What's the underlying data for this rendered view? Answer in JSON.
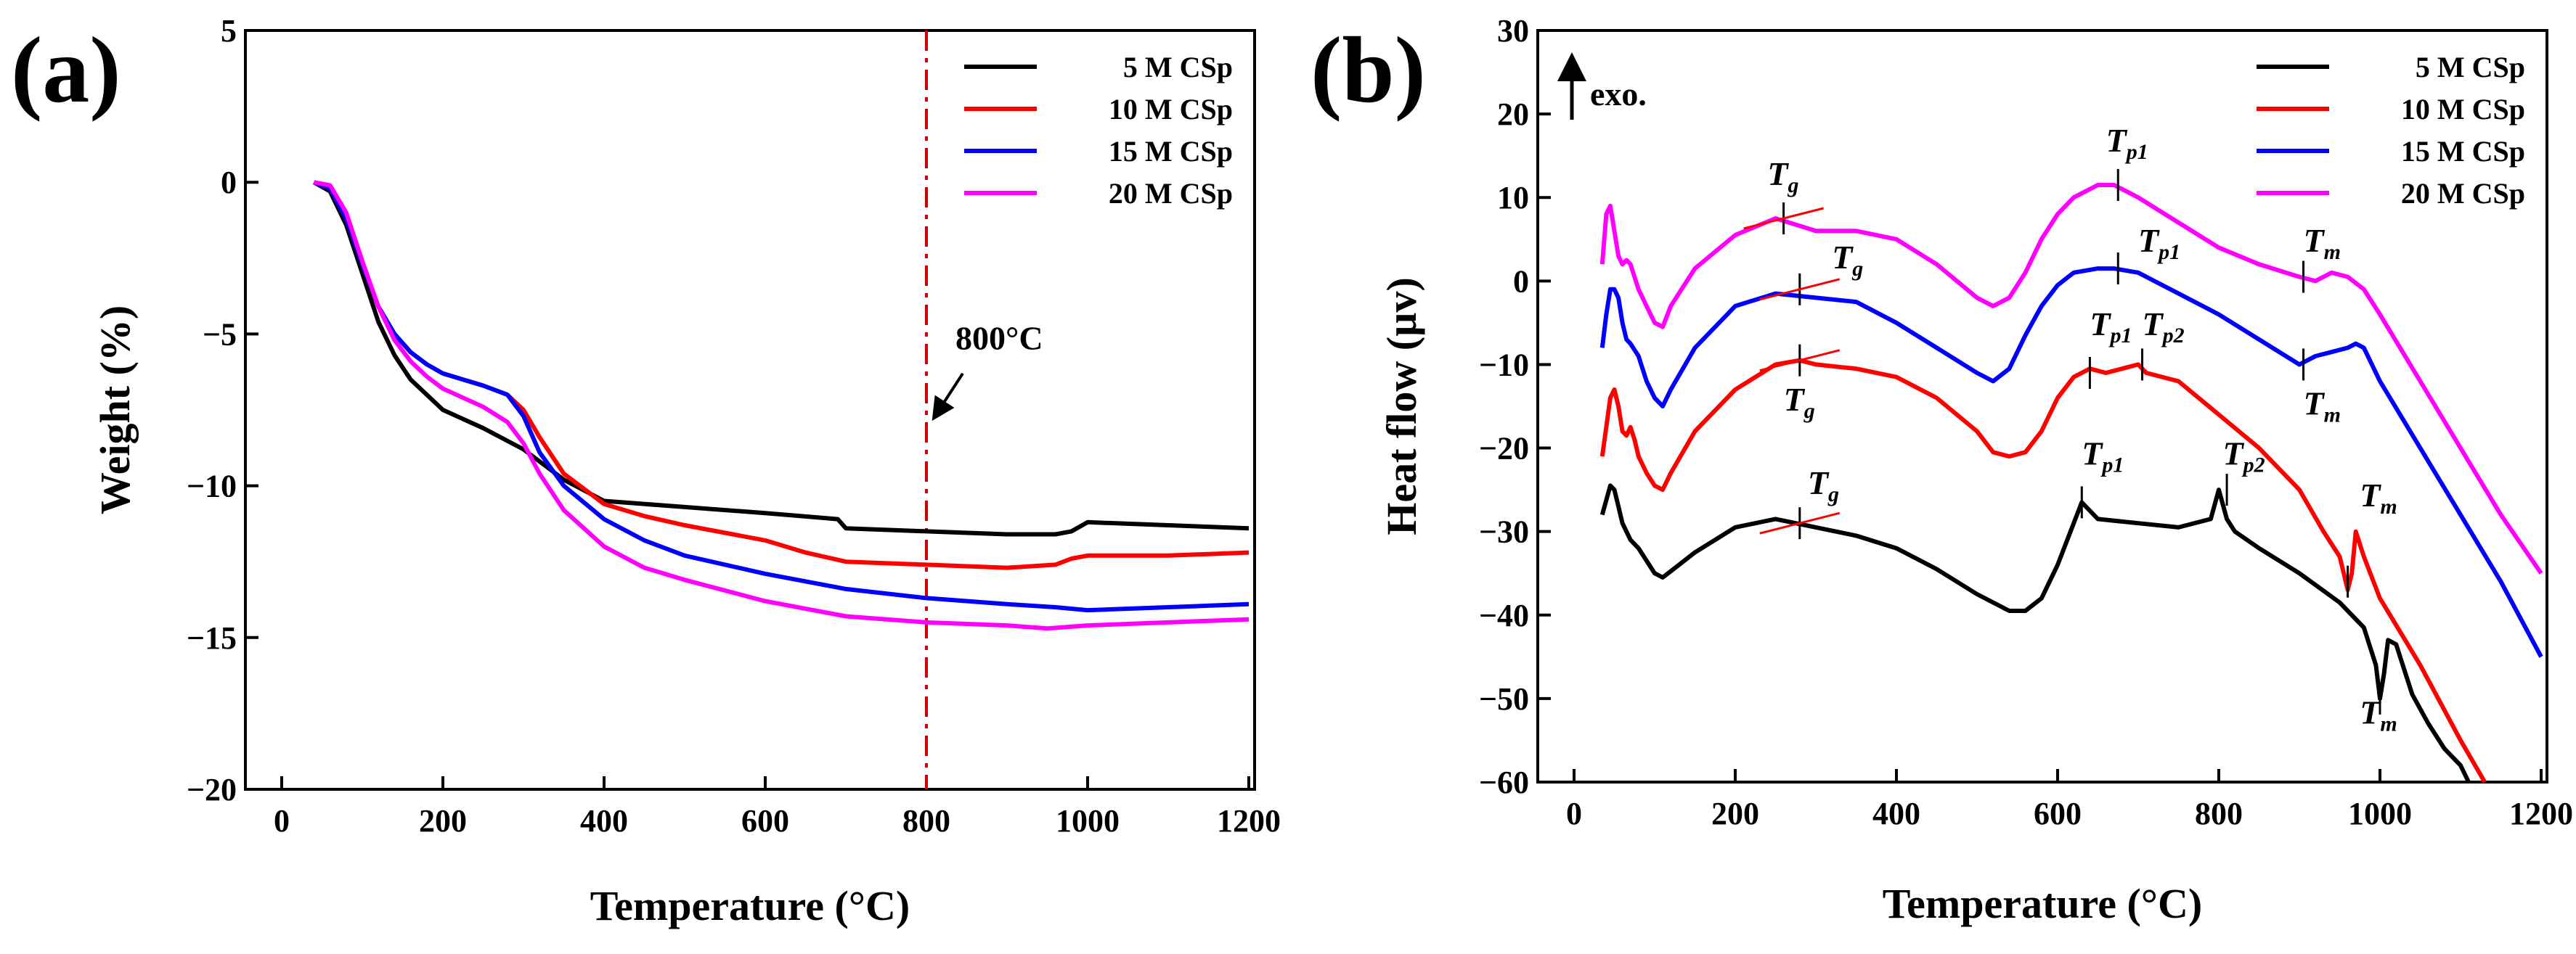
{
  "chart_data": [
    {
      "panel": "(a)",
      "type": "line",
      "xlabel": "Temperature (°C)",
      "ylabel": "Weight (%)",
      "xlim": [
        0,
        1200
      ],
      "ylim": [
        -20,
        5
      ],
      "xticks": [
        0,
        200,
        400,
        600,
        800,
        1000,
        1200
      ],
      "yticks": [
        -20,
        -15,
        -10,
        -5,
        0,
        5
      ],
      "ytick_labels": [
        "−20",
        "−15",
        "−10",
        "−5",
        "0",
        "5"
      ],
      "legend_position": "top-right",
      "series": [
        {
          "name": "5 M CSp",
          "color": "#000000",
          "x": [
            40,
            60,
            80,
            100,
            120,
            140,
            160,
            180,
            200,
            250,
            300,
            350,
            400,
            500,
            600,
            690,
            700,
            800,
            900,
            960,
            980,
            1000,
            1100,
            1200
          ],
          "y": [
            0,
            -0.3,
            -1.4,
            -3.0,
            -4.6,
            -5.7,
            -6.5,
            -7.0,
            -7.5,
            -8.1,
            -8.8,
            -9.8,
            -10.5,
            -10.7,
            -10.9,
            -11.1,
            -11.4,
            -11.5,
            -11.6,
            -11.6,
            -11.5,
            -11.2,
            -11.3,
            -11.4
          ]
        },
        {
          "name": "10 M CSp",
          "color": "#ff0000",
          "x": [
            40,
            60,
            80,
            100,
            120,
            140,
            160,
            180,
            200,
            250,
            280,
            300,
            320,
            350,
            400,
            450,
            500,
            600,
            650,
            700,
            800,
            900,
            960,
            980,
            1000,
            1100,
            1200
          ],
          "y": [
            0,
            -0.2,
            -1.2,
            -2.7,
            -4.1,
            -5.0,
            -5.6,
            -6.0,
            -6.3,
            -6.7,
            -7.0,
            -7.5,
            -8.4,
            -9.6,
            -10.6,
            -11.0,
            -11.3,
            -11.8,
            -12.2,
            -12.5,
            -12.6,
            -12.7,
            -12.6,
            -12.4,
            -12.3,
            -12.3,
            -12.2
          ]
        },
        {
          "name": "15 M CSp",
          "color": "#0000ff",
          "x": [
            40,
            60,
            80,
            100,
            120,
            140,
            160,
            180,
            200,
            250,
            280,
            300,
            320,
            350,
            400,
            450,
            500,
            600,
            700,
            800,
            900,
            960,
            1000,
            1100,
            1200
          ],
          "y": [
            0,
            -0.2,
            -1.2,
            -2.7,
            -4.1,
            -5.0,
            -5.6,
            -6.0,
            -6.3,
            -6.7,
            -7.0,
            -7.7,
            -8.9,
            -10.0,
            -11.1,
            -11.8,
            -12.3,
            -12.9,
            -13.4,
            -13.7,
            -13.9,
            -14.0,
            -14.1,
            -14.0,
            -13.9
          ]
        },
        {
          "name": "20 M CSp",
          "color": "#ff00ff",
          "x": [
            40,
            60,
            80,
            100,
            120,
            140,
            160,
            180,
            200,
            250,
            280,
            300,
            320,
            350,
            400,
            450,
            500,
            600,
            700,
            800,
            900,
            950,
            1000,
            1100,
            1200
          ],
          "y": [
            0,
            -0.1,
            -1.0,
            -2.6,
            -4.1,
            -5.2,
            -5.9,
            -6.4,
            -6.8,
            -7.4,
            -7.9,
            -8.6,
            -9.6,
            -10.8,
            -12.0,
            -12.7,
            -13.1,
            -13.8,
            -14.3,
            -14.5,
            -14.6,
            -14.7,
            -14.6,
            -14.5,
            -14.4
          ]
        }
      ],
      "marker_line": {
        "x": 800,
        "label": "800°C",
        "color": "#cc0000"
      }
    },
    {
      "panel": "(b)",
      "type": "line",
      "xlabel": "Temperature (°C)",
      "ylabel": "Heat flow (µv)",
      "xlim": [
        0,
        1200
      ],
      "ylim": [
        -60,
        30
      ],
      "xticks": [
        0,
        200,
        400,
        600,
        800,
        1000,
        1200
      ],
      "yticks": [
        -60,
        -50,
        -40,
        -30,
        -20,
        -10,
        0,
        10,
        20,
        30
      ],
      "ytick_labels": [
        "−60",
        "−50",
        "−40",
        "−30",
        "−20",
        "−10",
        "0",
        "10",
        "20",
        "30"
      ],
      "legend_position": "top-right",
      "exo_label": "exo.",
      "series": [
        {
          "name": "5 M CSp",
          "color": "#000000",
          "x": [
            35,
            45,
            50,
            55,
            60,
            70,
            80,
            90,
            100,
            110,
            130,
            150,
            200,
            250,
            300,
            350,
            400,
            450,
            500,
            540,
            560,
            580,
            600,
            620,
            630,
            650,
            680,
            700,
            750,
            790,
            800,
            810,
            820,
            850,
            900,
            950,
            980,
            995,
            1000,
            1005,
            1010,
            1020,
            1040,
            1060,
            1080,
            1100,
            1110
          ],
          "y": [
            -28,
            -24.5,
            -25,
            -27,
            -29,
            -31,
            -32,
            -33.5,
            -35,
            -35.5,
            -34,
            -32.5,
            -29.5,
            -28.5,
            -29.5,
            -30.5,
            -32,
            -34.5,
            -37.5,
            -39.5,
            -39.5,
            -38,
            -34,
            -29,
            -26.5,
            -28.5,
            -28.8,
            -29,
            -29.5,
            -28.5,
            -25,
            -28.5,
            -30,
            -32,
            -35,
            -38.5,
            -41.5,
            -46,
            -50,
            -47,
            -43,
            -43.5,
            -49.5,
            -53,
            -56,
            -58,
            -60
          ]
        },
        {
          "name": "10 M CSp",
          "color": "#ff0000",
          "x": [
            35,
            45,
            50,
            55,
            60,
            65,
            70,
            75,
            80,
            90,
            100,
            110,
            120,
            150,
            200,
            250,
            280,
            300,
            350,
            400,
            450,
            500,
            520,
            540,
            560,
            580,
            600,
            620,
            640,
            660,
            680,
            700,
            710,
            750,
            800,
            850,
            900,
            930,
            950,
            955,
            960,
            965,
            970,
            980,
            1000,
            1050,
            1100,
            1130
          ],
          "y": [
            -21,
            -14,
            -13,
            -15,
            -18,
            -18.5,
            -17.5,
            -19,
            -21,
            -23,
            -24.5,
            -25,
            -23,
            -18,
            -13,
            -10,
            -9.5,
            -10,
            -10.5,
            -11.5,
            -14,
            -18,
            -20.5,
            -21,
            -20.5,
            -18,
            -14,
            -11.5,
            -10.5,
            -11,
            -10.5,
            -10,
            -11,
            -12,
            -16,
            -20,
            -25,
            -30,
            -33,
            -35,
            -37,
            -35,
            -30,
            -33,
            -38,
            -46,
            -55,
            -60
          ]
        },
        {
          "name": "15 M CSp",
          "color": "#0000ff",
          "x": [
            35,
            40,
            45,
            50,
            55,
            60,
            65,
            70,
            80,
            90,
            100,
            110,
            120,
            150,
            200,
            250,
            300,
            350,
            400,
            450,
            500,
            520,
            540,
            560,
            580,
            600,
            620,
            650,
            670,
            700,
            750,
            800,
            850,
            900,
            920,
            940,
            960,
            970,
            980,
            1000,
            1050,
            1100,
            1150,
            1200
          ],
          "y": [
            -8,
            -4,
            -1,
            -1,
            -2,
            -5,
            -7,
            -7.5,
            -9,
            -12,
            -14,
            -15,
            -13,
            -8,
            -3,
            -1.5,
            -2,
            -2.5,
            -5,
            -8,
            -11,
            -12,
            -10.5,
            -6.5,
            -3,
            -0.5,
            1,
            1.5,
            1.5,
            1,
            -1.5,
            -4,
            -7,
            -10,
            -9,
            -8.5,
            -8,
            -7.5,
            -8,
            -12,
            -20,
            -28,
            -36,
            -45
          ]
        },
        {
          "name": "20 M CSp",
          "color": "#ff00ff",
          "x": [
            35,
            40,
            45,
            50,
            55,
            60,
            65,
            70,
            80,
            90,
            100,
            110,
            120,
            150,
            200,
            250,
            300,
            350,
            400,
            450,
            500,
            520,
            540,
            560,
            580,
            600,
            620,
            650,
            670,
            700,
            750,
            800,
            850,
            900,
            920,
            940,
            960,
            980,
            1000,
            1050,
            1100,
            1150,
            1200
          ],
          "y": [
            2,
            8,
            9,
            6,
            3,
            2,
            2.5,
            2,
            -1,
            -3,
            -5,
            -5.5,
            -3,
            1.5,
            5.5,
            7.5,
            6,
            6,
            5,
            2,
            -2,
            -3,
            -2,
            1,
            5,
            8,
            10,
            11.5,
            11.5,
            10,
            7,
            4,
            2,
            0.5,
            0,
            1,
            0.5,
            -1,
            -4,
            -12,
            -20,
            -28,
            -35
          ]
        }
      ],
      "annotations": [
        {
          "id": "tg-magenta",
          "main": "T",
          "sub": "g",
          "x": 240,
          "y": 11.5,
          "mark_x": 260,
          "mark_y": 7.5
        },
        {
          "id": "tp1-magenta",
          "main": "T",
          "sub": "p1",
          "x": 660,
          "y": 15.5,
          "mark_x": 675,
          "mark_y": 11.5
        },
        {
          "id": "tm-magenta",
          "main": "T",
          "sub": "m",
          "x": 905,
          "y": 3.5,
          "mark_x": 905,
          "mark_y": 0.5
        },
        {
          "id": "tg-blue",
          "main": "T",
          "sub": "g",
          "x": 320,
          "y": 1.5,
          "mark_x": 280,
          "mark_y": -1
        },
        {
          "id": "tp1-blue",
          "main": "T",
          "sub": "p1",
          "x": 700,
          "y": 3.5,
          "mark_x": 675,
          "mark_y": 1.5
        },
        {
          "id": "tm-blue",
          "main": "T",
          "sub": "m",
          "x": 905,
          "y": -16,
          "mark_x": 905,
          "mark_y": -10
        },
        {
          "id": "tg-red",
          "main": "T",
          "sub": "g",
          "x": 260,
          "y": -15.5,
          "mark_x": 280,
          "mark_y": -9.5
        },
        {
          "id": "tp1-red",
          "main": "T",
          "sub": "p1",
          "x": 640,
          "y": -6.5,
          "mark_x": 640,
          "mark_y": -11
        },
        {
          "id": "tp2-red",
          "main": "T",
          "sub": "p2",
          "x": 705,
          "y": -6.5,
          "mark_x": 705,
          "mark_y": -10
        },
        {
          "id": "tm-red",
          "main": "T",
          "sub": "m",
          "x": 975,
          "y": -27,
          "mark_x": 960,
          "mark_y": -36
        },
        {
          "id": "tg-black",
          "main": "T",
          "sub": "g",
          "x": 290,
          "y": -25.5,
          "mark_x": 280,
          "mark_y": -29
        },
        {
          "id": "tp1-black",
          "main": "T",
          "sub": "p1",
          "x": 630,
          "y": -22,
          "mark_x": 630,
          "mark_y": -26.5
        },
        {
          "id": "tp2-black",
          "main": "T",
          "sub": "p2",
          "x": 805,
          "y": -22,
          "mark_x": 810,
          "mark_y": -25
        },
        {
          "id": "tm-black",
          "main": "T",
          "sub": "m",
          "x": 975,
          "y": -53,
          "mark_x": 1000,
          "mark_y": -50
        }
      ]
    }
  ]
}
